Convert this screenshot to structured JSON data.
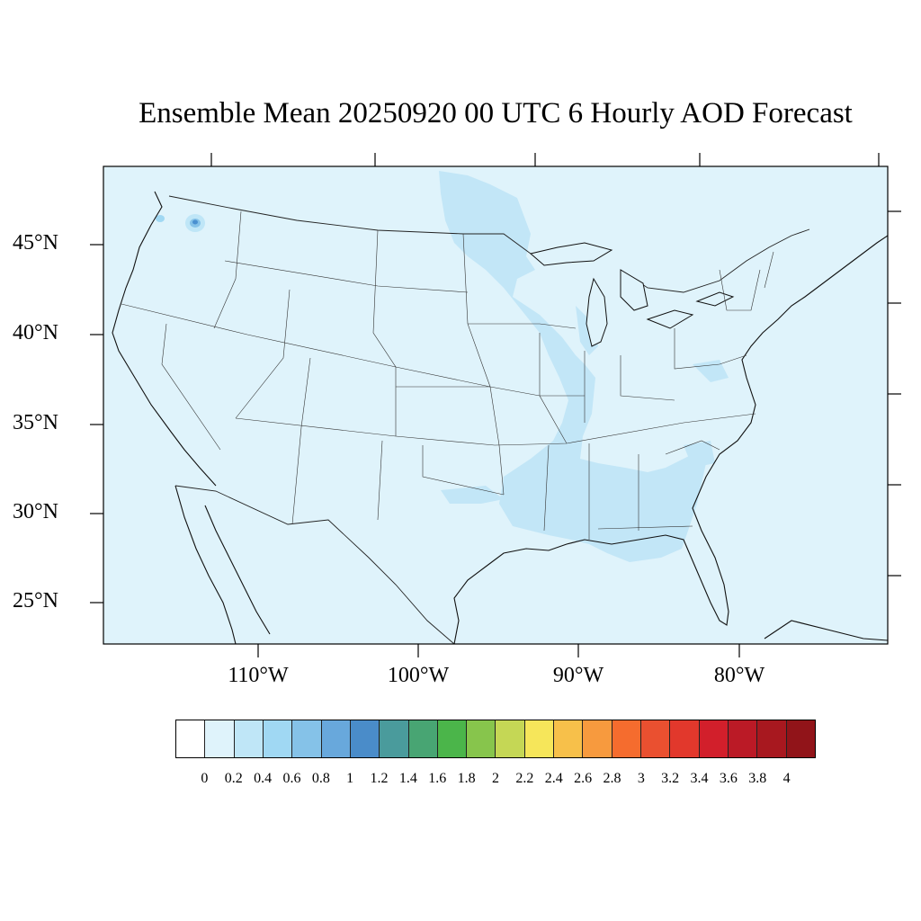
{
  "title": "Ensemble Mean 20250920 00 UTC 6 Hourly AOD Forecast",
  "map": {
    "projection": "lambert-conformal",
    "region": "contiguous-united-states",
    "ocean_color": "#dff3fb",
    "land_color": "#dff3fb",
    "plume_color": "#c2e6f7",
    "hotspot_color": "#4a90d0",
    "lat_labels": [
      "45°N",
      "40°N",
      "35°N",
      "30°N",
      "25°N"
    ],
    "lon_labels": [
      "110°W",
      "100°W",
      "90°W",
      "80°W"
    ]
  },
  "colorbar": {
    "colors": [
      "#ffffff",
      "#dff3fb",
      "#bfe6f7",
      "#a0d8f3",
      "#85c2e8",
      "#68a8dc",
      "#4a8cc9",
      "#4a9b9c",
      "#48a573",
      "#4bb54a",
      "#87c54c",
      "#c5d755",
      "#f6e65a",
      "#f7c04a",
      "#f79a3e",
      "#f56c2e",
      "#ea5030",
      "#e2382c",
      "#d21f2b",
      "#bb1a26",
      "#a8181f",
      "#911419"
    ],
    "labels": [
      "0",
      "0.2",
      "0.4",
      "0.6",
      "0.8",
      "1",
      "1.2",
      "1.4",
      "1.6",
      "1.8",
      "2",
      "2.2",
      "2.4",
      "2.6",
      "2.8",
      "3",
      "3.2",
      "3.4",
      "3.6",
      "3.8",
      "4"
    ]
  }
}
